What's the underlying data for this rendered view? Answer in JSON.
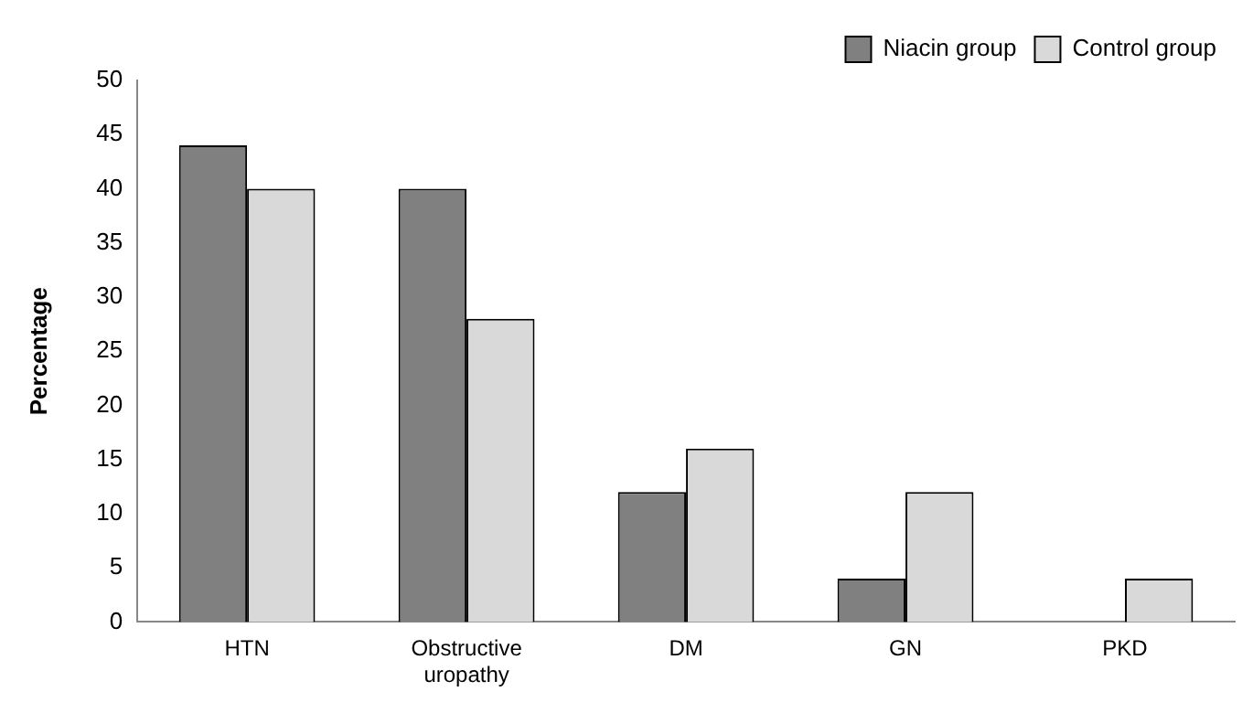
{
  "chart_data": {
    "type": "bar",
    "ylabel": "Percentage",
    "categories": [
      "HTN",
      "Obstructive uropathy",
      "DM",
      "GN",
      "PKD"
    ],
    "series": [
      {
        "name": "Niacin group",
        "color": "#808080",
        "values": [
          44,
          40,
          12,
          4,
          0
        ]
      },
      {
        "name": "Control group",
        "color": "#d9d9d9",
        "values": [
          40,
          28,
          16,
          12,
          4
        ]
      }
    ],
    "ylim": [
      0,
      50
    ],
    "yticks": [
      0,
      5,
      10,
      15,
      20,
      25,
      30,
      35,
      40,
      45,
      50
    ],
    "grid": false,
    "legend": "top right"
  }
}
